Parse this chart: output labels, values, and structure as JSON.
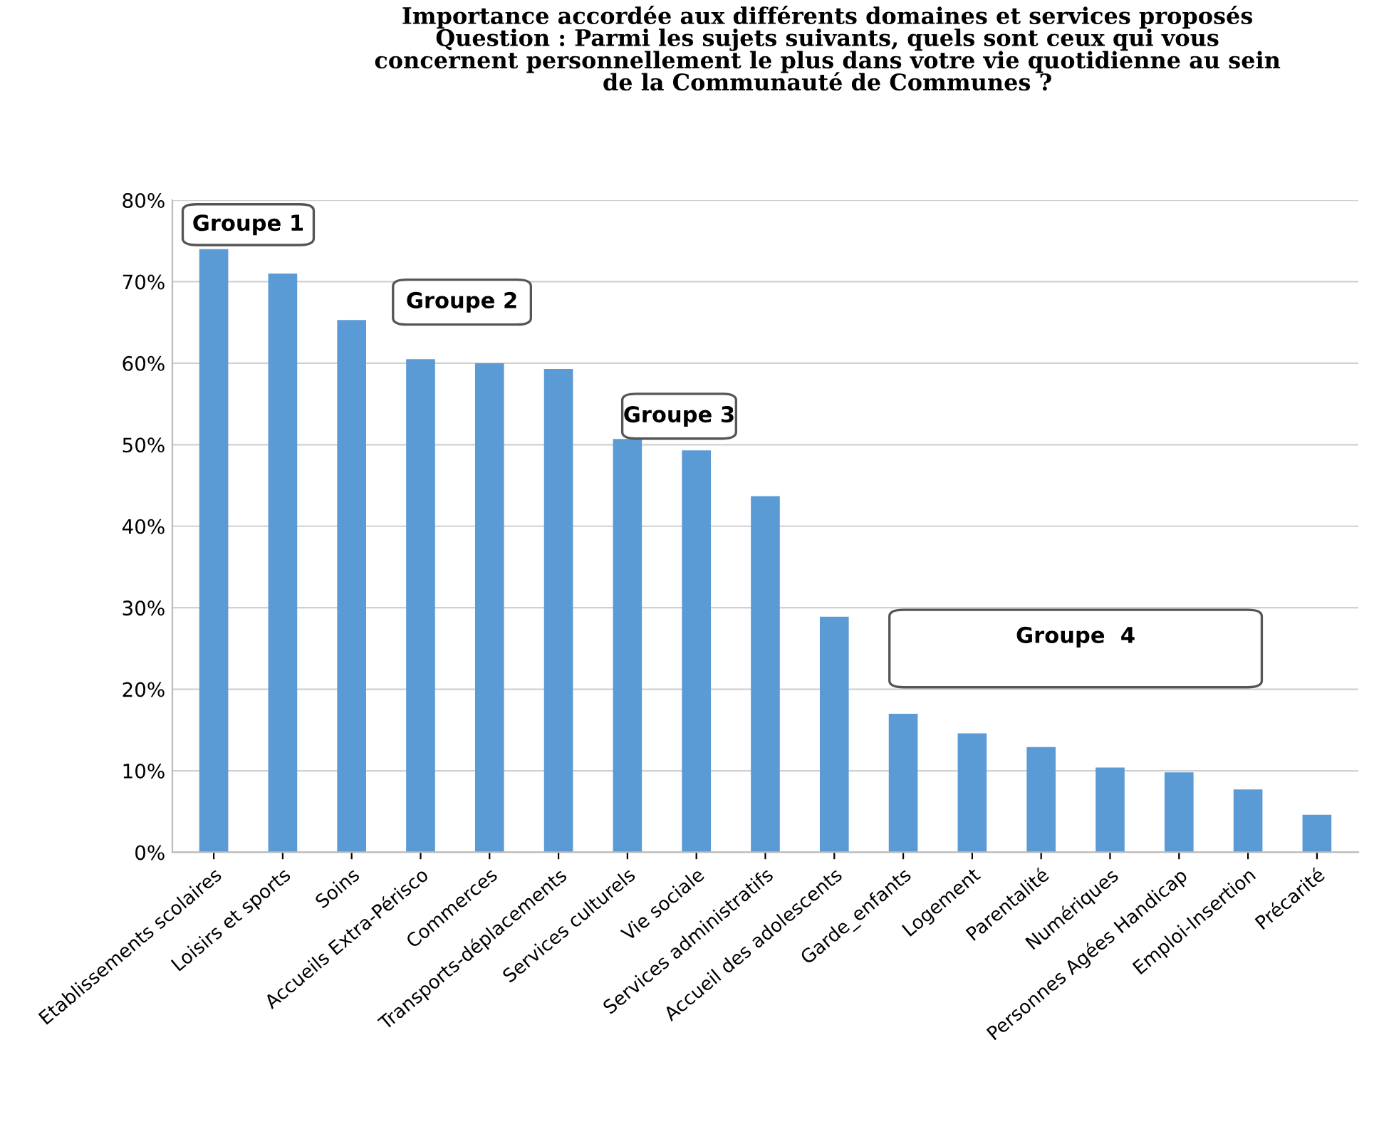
{
  "chart_data": {
    "type": "bar",
    "title": "Importance accordée aux différents domaines et services proposés\nQuestion : Parmi les sujets suivants, quels sont ceux qui vous\nconcernent personnellement le plus dans votre vie quotidienne au sein\nde la Communauté de Communes ?",
    "categories": [
      "Etablissements scolaires",
      "Loisirs et sports",
      "Soins",
      "Accueils Extra-Périsco",
      "Commerces",
      "Transports-déplacements",
      "Services culturels",
      "Vie sociale",
      "Services administratifs",
      "Accueil des adolescents",
      "Garde_enfants",
      "Logement",
      "Parentalité",
      "Numériques",
      "Personnes Agées Handicap",
      "Emploi-Insertion",
      "Précarité"
    ],
    "values": [
      74,
      71,
      65.3,
      60.5,
      60,
      59.3,
      50.7,
      49.3,
      43.7,
      28.9,
      17,
      14.6,
      12.9,
      10.4,
      9.8,
      7.7,
      4.6
    ],
    "color": "#5b9bd5",
    "ylim": [
      0,
      80
    ],
    "yticks": [
      {
        "value": 0,
        "label": "0%"
      },
      {
        "value": 10,
        "label": "10%"
      },
      {
        "value": 20,
        "label": "20%"
      },
      {
        "value": 30,
        "label": "30%"
      },
      {
        "value": 40,
        "label": "40%"
      },
      {
        "value": 50,
        "label": "50%"
      },
      {
        "value": 60,
        "label": "60%"
      },
      {
        "value": 70,
        "label": "70%"
      },
      {
        "value": 80,
        "label": "80%"
      }
    ],
    "grid": "y",
    "annotations": [
      "Groupe 1",
      "Groupe 2",
      "Groupe 3",
      "Groupe  4"
    ]
  }
}
